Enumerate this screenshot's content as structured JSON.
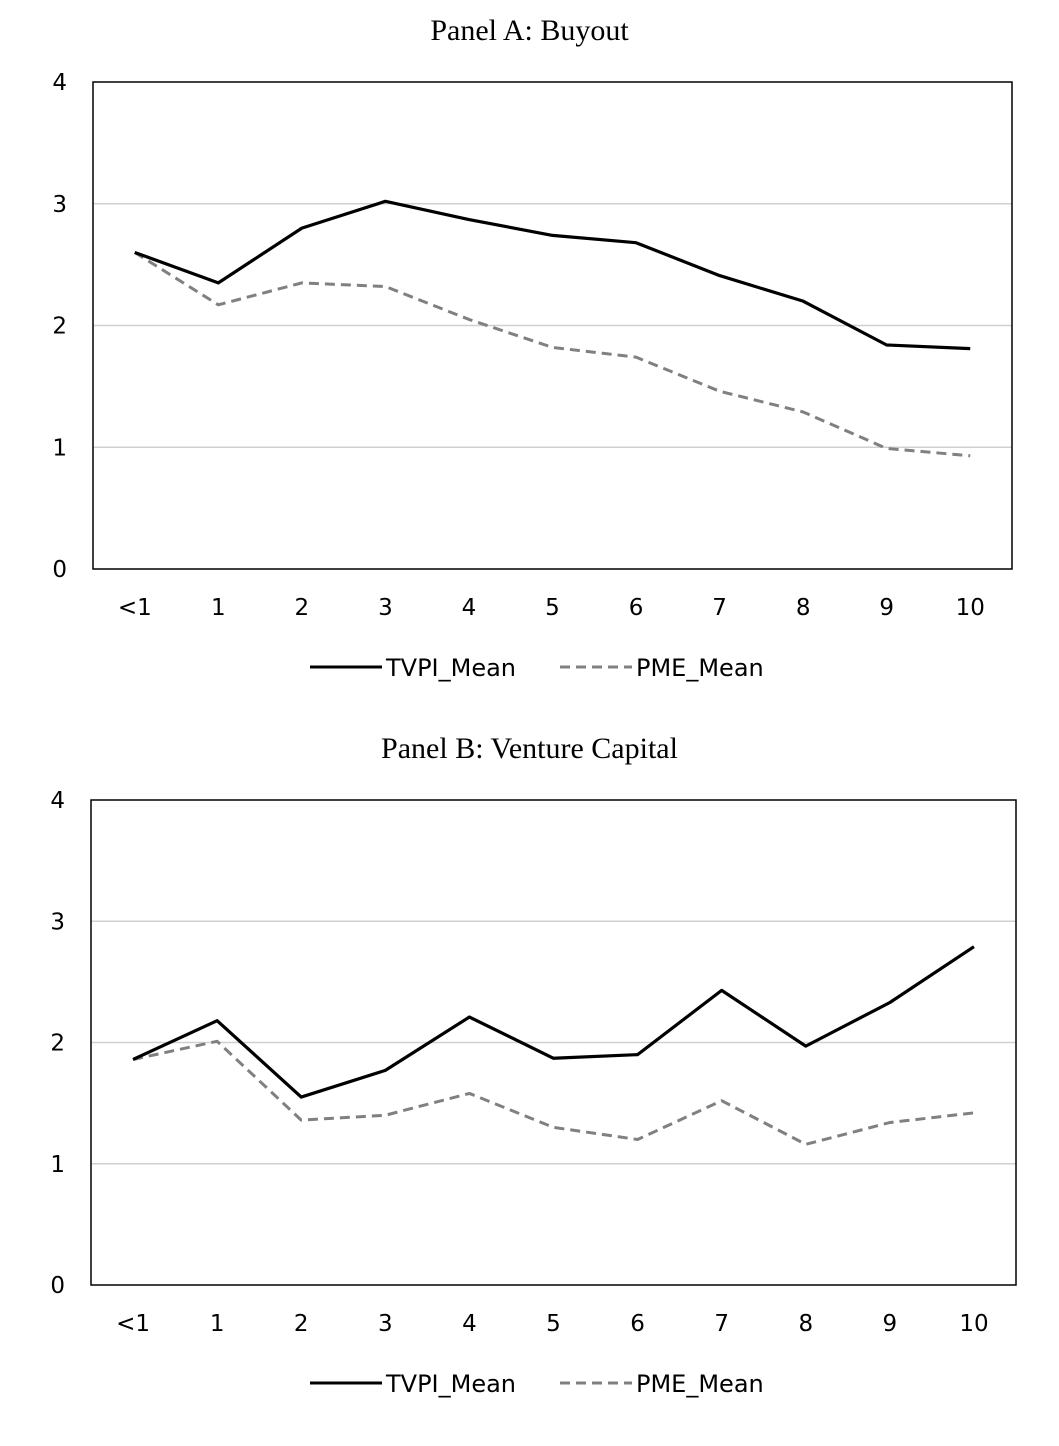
{
  "chart_data": [
    {
      "type": "line",
      "title": "Panel A: Buyout",
      "categories": [
        "<1",
        "1",
        "2",
        "3",
        "4",
        "5",
        "6",
        "7",
        "8",
        "9",
        "10"
      ],
      "ylim": [
        0,
        4
      ],
      "yticks": [
        "0",
        "1",
        "2",
        "3",
        "4"
      ],
      "grid": true,
      "legend_position": "bottom",
      "series": [
        {
          "name": "TVPI_Mean",
          "style": "solid",
          "color": "#000000",
          "values": [
            2.6,
            2.35,
            2.8,
            3.02,
            2.87,
            2.74,
            2.68,
            2.41,
            2.2,
            1.84,
            1.81
          ]
        },
        {
          "name": "PME_Mean",
          "style": "dashed",
          "color": "#808080",
          "values": [
            2.6,
            2.17,
            2.35,
            2.32,
            2.05,
            1.82,
            1.74,
            1.46,
            1.29,
            0.99,
            0.93
          ]
        }
      ]
    },
    {
      "type": "line",
      "title": "Panel B: Venture Capital",
      "categories": [
        "<1",
        "1",
        "2",
        "3",
        "4",
        "5",
        "6",
        "7",
        "8",
        "9",
        "10"
      ],
      "ylim": [
        0,
        4
      ],
      "yticks": [
        "0",
        "1",
        "2",
        "3",
        "4"
      ],
      "grid": true,
      "legend_position": "bottom",
      "series": [
        {
          "name": "TVPI_Mean",
          "style": "solid",
          "color": "#000000",
          "values": [
            1.86,
            2.18,
            1.55,
            1.77,
            2.21,
            1.87,
            1.9,
            2.43,
            1.97,
            2.33,
            2.79
          ]
        },
        {
          "name": "PME_Mean",
          "style": "dashed",
          "color": "#808080",
          "values": [
            1.86,
            2.01,
            1.36,
            1.4,
            1.58,
            1.3,
            1.2,
            1.52,
            1.16,
            1.34,
            1.42
          ]
        }
      ]
    }
  ]
}
